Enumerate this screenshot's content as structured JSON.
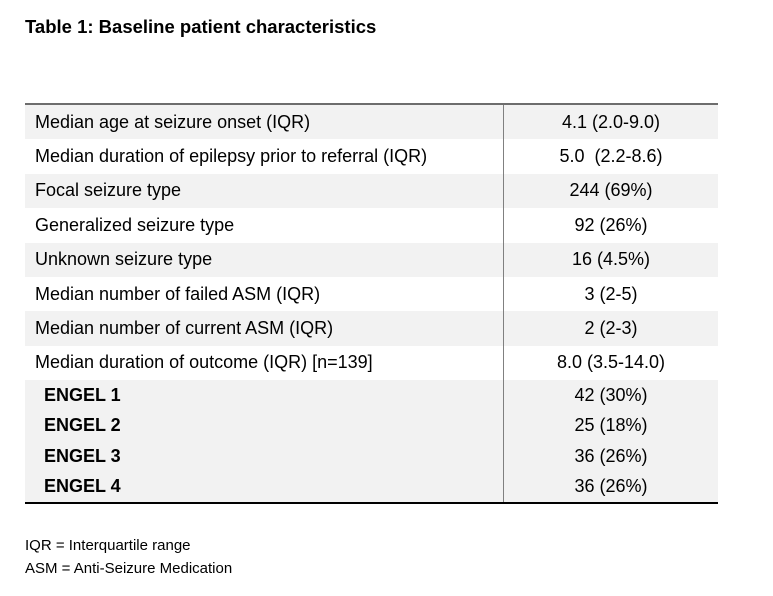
{
  "title": "Table 1: Baseline patient characteristics",
  "table": {
    "rows": [
      {
        "label": "Median age at seizure onset (IQR)",
        "value": "4.1 (2.0-9.0)"
      },
      {
        "label": "Median duration of epilepsy prior to referral (IQR)",
        "value": "5.0  (2.2-8.6)"
      },
      {
        "label": "Focal seizure type",
        "value": "244 (69%)"
      },
      {
        "label": "Generalized seizure type",
        "value": "92 (26%)"
      },
      {
        "label": "Unknown seizure type",
        "value": "16 (4.5%)"
      },
      {
        "label": "Median number of failed ASM (IQR)",
        "value": "3 (2-5)"
      },
      {
        "label": "Median number of current ASM (IQR)",
        "value": "2 (2-3)"
      },
      {
        "label": "Median duration of outcome (IQR) [n=139]",
        "value": "8.0 (3.5-14.0)"
      }
    ],
    "engel_rows": [
      {
        "label": "ENGEL 1",
        "value": "42 (30%)"
      },
      {
        "label": "ENGEL 2",
        "value": "25 (18%)"
      },
      {
        "label": "ENGEL 3",
        "value": "36 (26%)"
      },
      {
        "label": "ENGEL 4",
        "value": "36 (26%)"
      }
    ]
  },
  "footnotes": [
    "IQR = Interquartile range",
    "ASM = Anti-Seizure Medication"
  ],
  "colors": {
    "stripe": "#f2f2f2",
    "top_border": "#6d6d6d",
    "bottom_border": "#000000",
    "divider": "#808080",
    "text": "#000000",
    "page_bg": "#ffffff"
  }
}
